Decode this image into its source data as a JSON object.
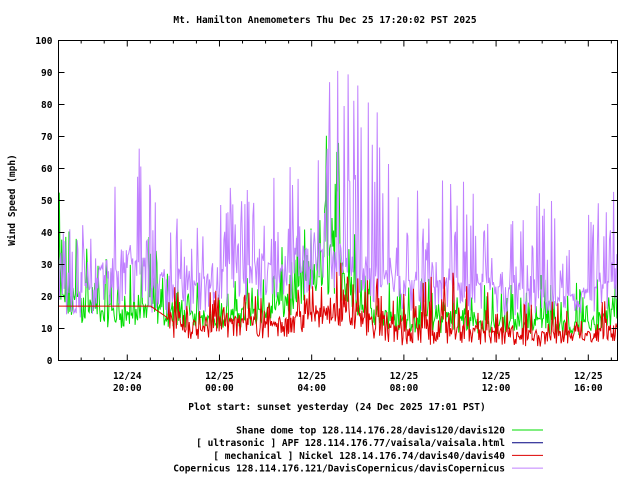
{
  "chart_data": {
    "type": "line",
    "title": "Mt. Hamilton Anemometers Thu Dec 25 17:20:02 PST 2025",
    "xlabel": "Plot start: sunset yesterday (24 Dec 2025 17:01 PST)",
    "ylabel": "Wind Speed (mph)",
    "ylim": [
      0,
      100
    ],
    "yticks": [
      "0",
      "10",
      "20",
      "30",
      "40",
      "50",
      "60",
      "70",
      "80",
      "90",
      "100"
    ],
    "x_units": "hours since 24 Dec 2025 17:01 PST",
    "xlim": [
      0,
      24.25
    ],
    "xticks": [
      {
        "hour": 2.983,
        "date": "12/24",
        "time": "20:00"
      },
      {
        "hour": 6.983,
        "date": "12/25",
        "time": "00:00"
      },
      {
        "hour": 10.983,
        "date": "12/25",
        "time": "04:00"
      },
      {
        "hour": 14.983,
        "date": "12/25",
        "time": "08:00"
      },
      {
        "hour": 18.983,
        "date": "12/25",
        "time": "12:00"
      },
      {
        "hour": 22.983,
        "date": "12/25",
        "time": "16:00"
      }
    ],
    "grid": false,
    "legend_position": "bottom",
    "envelope_note": "hourly envelope (low / typical / high) per series",
    "series": [
      {
        "name": "Shane dome top 128.114.176.28/davis120/davis120",
        "color": "#00dd00",
        "low": [
          8,
          8,
          8,
          8,
          8,
          8,
          9,
          8,
          8,
          9,
          10,
          12,
          14,
          10,
          8,
          6,
          6,
          6,
          6,
          6,
          6,
          6,
          6,
          6,
          8
        ],
        "mid": [
          20,
          20,
          16,
          15,
          18,
          15,
          14,
          14,
          16,
          16,
          20,
          28,
          36,
          18,
          15,
          14,
          14,
          14,
          13,
          12,
          13,
          13,
          12,
          12,
          16
        ],
        "high": [
          53,
          50,
          32,
          30,
          40,
          28,
          25,
          22,
          28,
          30,
          38,
          46,
          92,
          35,
          30,
          25,
          28,
          30,
          25,
          25,
          30,
          28,
          25,
          25,
          30
        ]
      },
      {
        "name": "[ ultrasonic ] APF 128.114.176.77/vaisala/vaisala.html",
        "color": "#000080",
        "low": [],
        "mid": [],
        "high": []
      },
      {
        "name": "[ mechanical ] Nickel 128.14.176.74/davis40/davis40",
        "color": "#dd0000",
        "low": [
          17,
          17,
          17,
          17,
          17,
          4,
          4,
          4,
          4,
          4,
          5,
          6,
          8,
          6,
          3,
          2,
          2,
          3,
          3,
          2,
          2,
          2,
          3,
          3,
          4
        ],
        "mid": [
          17,
          17,
          17,
          17,
          17,
          12,
          12,
          13,
          13,
          12,
          13,
          15,
          18,
          15,
          12,
          10,
          10,
          11,
          10,
          9,
          8,
          9,
          9,
          9,
          11
        ],
        "high": [
          17,
          17,
          17,
          17,
          17,
          24,
          22,
          22,
          22,
          22,
          24,
          28,
          33,
          30,
          25,
          22,
          26,
          28,
          24,
          20,
          18,
          20,
          20,
          20,
          22
        ]
      },
      {
        "name": "Copernicus 128.114.176.121/DavisCopernicus/davisCopernicus",
        "color": "#c080ff",
        "low": [
          8,
          10,
          10,
          10,
          9,
          10,
          10,
          10,
          10,
          12,
          12,
          14,
          14,
          14,
          12,
          12,
          10,
          12,
          10,
          10,
          8,
          10,
          10,
          8,
          10
        ],
        "mid": [
          22,
          20,
          30,
          33,
          28,
          25,
          25,
          28,
          32,
          30,
          30,
          36,
          38,
          30,
          27,
          25,
          25,
          25,
          24,
          23,
          22,
          22,
          20,
          22,
          25
        ],
        "high": [
          67,
          50,
          58,
          78,
          57,
          50,
          45,
          52,
          68,
          62,
          64,
          80,
          91,
          90,
          75,
          60,
          56,
          58,
          55,
          50,
          52,
          56,
          50,
          54,
          56
        ]
      }
    ]
  }
}
